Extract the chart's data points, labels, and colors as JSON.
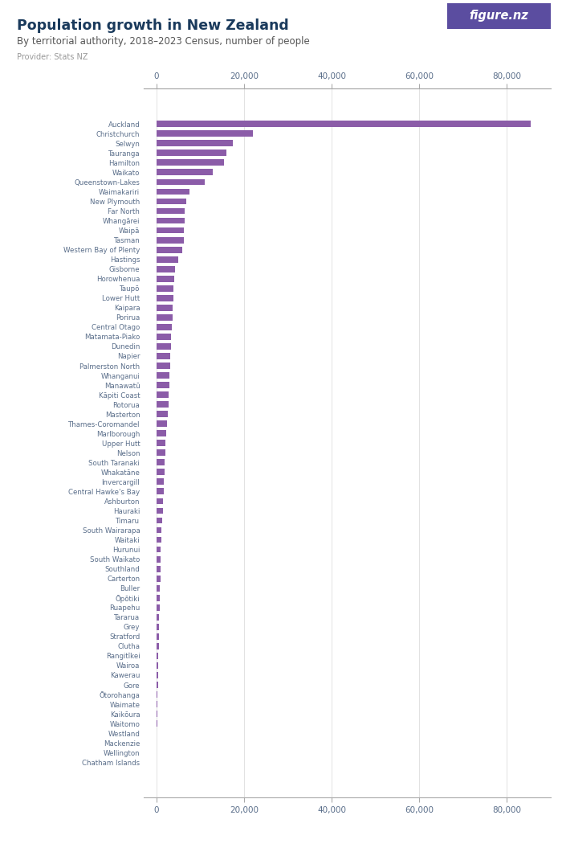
{
  "title": "Population growth in New Zealand",
  "subtitle": "By territorial authority, 2018–2023 Census, number of people",
  "provider": "Provider: Stats NZ",
  "bar_color": "#8B5CA8",
  "background_color": "#ffffff",
  "title_color": "#1a3a5c",
  "subtitle_color": "#555555",
  "provider_color": "#999999",
  "label_color": "#5a6e8a",
  "xlim": [
    -3000,
    90000
  ],
  "xticks": [
    0,
    20000,
    40000,
    60000,
    80000
  ],
  "xtick_labels": [
    "0",
    "20,000",
    "40,000",
    "60,000",
    "80,000"
  ],
  "categories": [
    "Auckland",
    "Christchurch",
    "Selwyn",
    "Tauranga",
    "Hamilton",
    "Waikato",
    "Queenstown-Lakes",
    "Waimakariri",
    "New Plymouth",
    "Far North",
    "Whangārei",
    "Waipā",
    "Tasman",
    "Western Bay of Plenty",
    "Hastings",
    "Gisborne",
    "Horowhenua",
    "Taupō",
    "Lower Hutt",
    "Kaipara",
    "Porirua",
    "Central Otago",
    "Matamata-Piako",
    "Dunedin",
    "Napier",
    "Palmerston North",
    "Whanganui",
    "Manawatū",
    "Kāpiti Coast",
    "Rotorua",
    "Masterton",
    "Thames-Coromandel",
    "Marlborough",
    "Upper Hutt",
    "Nelson",
    "South Taranaki",
    "Whakatāne",
    "Invercargill",
    "Central Hawke's Bay",
    "Ashburton",
    "Hauraki",
    "Timaru",
    "South Wairarapa",
    "Waitaki",
    "Hurunui",
    "South Waikato",
    "Southland",
    "Carterton",
    "Buller",
    "Ōpōtiki",
    "Ruapehu",
    "Tararua",
    "Grey",
    "Stratford",
    "Clutha",
    "Rangitīkei",
    "Wairoa",
    "Kawerau",
    "Gore",
    "Ōtorohanga",
    "Waimate",
    "Kaikōura",
    "Waitomo",
    "Westland",
    "Mackenzie",
    "Wellington",
    "Chatham Islands"
  ],
  "values": [
    85500,
    22000,
    17500,
    16000,
    15500,
    12800,
    11000,
    7500,
    6800,
    6500,
    6400,
    6300,
    6200,
    5800,
    5000,
    4200,
    4000,
    3900,
    3800,
    3700,
    3600,
    3500,
    3400,
    3300,
    3200,
    3100,
    3000,
    2900,
    2800,
    2700,
    2500,
    2400,
    2200,
    2100,
    2000,
    1900,
    1800,
    1700,
    1600,
    1500,
    1400,
    1300,
    1200,
    1100,
    1000,
    950,
    900,
    850,
    800,
    750,
    700,
    650,
    600,
    550,
    500,
    450,
    400,
    350,
    300,
    250,
    200,
    150,
    120,
    100,
    80,
    50,
    20
  ],
  "figurenz_bg": "#5B4DA0",
  "figurenz_text": "figure.nz"
}
